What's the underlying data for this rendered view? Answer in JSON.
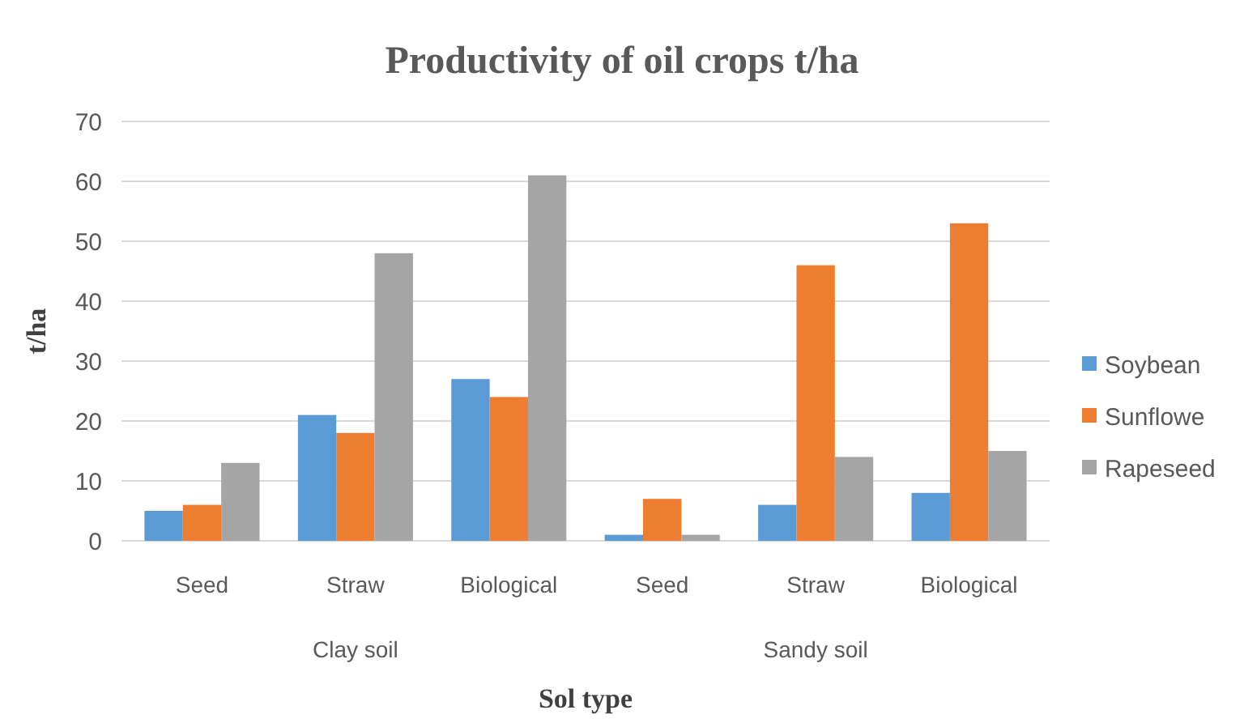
{
  "chart_data": {
    "type": "bar",
    "title": "Productivity of oil crops t/ha",
    "xlabel": "Sol type",
    "ylabel": "t/ha",
    "categories": [
      "Seed",
      "Straw",
      "Biological",
      "Seed",
      "Straw",
      "Biological"
    ],
    "annotations": [
      "Clay soil",
      "Sandy soil"
    ],
    "series": [
      {
        "name": "Soybean",
        "color": "#5b9bd5",
        "values": [
          5,
          21,
          27,
          1,
          6,
          8
        ]
      },
      {
        "name": "Sunflowe",
        "color": "#ed7d31",
        "values": [
          6,
          18,
          24,
          7,
          46,
          53
        ]
      },
      {
        "name": "Rapeseed",
        "color": "#a5a5a5",
        "values": [
          13,
          48,
          61,
          1,
          14,
          15
        ]
      }
    ],
    "ylim": [
      0,
      70
    ],
    "yticks": [
      0,
      10,
      20,
      30,
      40,
      50,
      60,
      70
    ],
    "grid": "y",
    "legend": "right"
  }
}
